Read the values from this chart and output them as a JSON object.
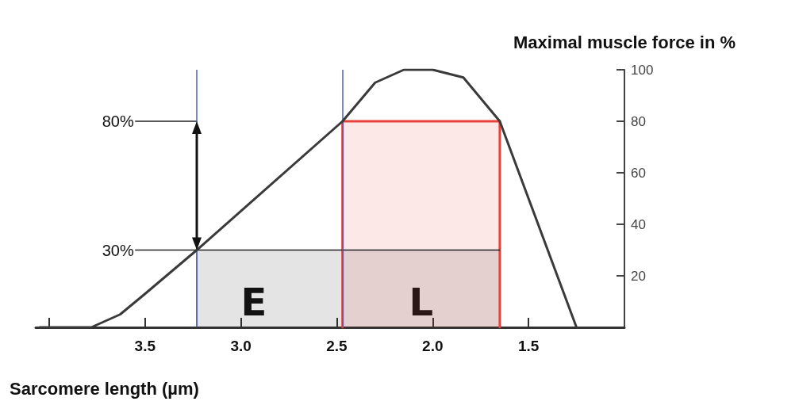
{
  "chart_data": {
    "type": "line",
    "xlabel": "Sarcomere length (µm)",
    "ylabel": "Maximal muscle force in %",
    "xlim": [
      4.07,
      1.0
    ],
    "ylim": [
      0,
      100
    ],
    "xticks": [
      {
        "value": 4.0,
        "label": null
      },
      3.5,
      {
        "value": 3.0,
        "label": "3.0"
      },
      2.5,
      {
        "value": 2.0,
        "label": "2.0"
      },
      1.5
    ],
    "yticks": [
      20,
      40,
      60,
      80,
      100
    ],
    "grid": false,
    "marker": "none",
    "line_style": "solid",
    "series": [
      {
        "type": "line",
        "color": "#3a3a3a",
        "x": [
          4.05,
          3.78,
          3.63,
          3.5,
          3.23,
          2.47,
          2.3,
          2.15,
          2.0,
          1.84,
          1.65,
          1.25
        ],
        "values": [
          0,
          0,
          5,
          13,
          30,
          80,
          95,
          100,
          100,
          97,
          80,
          0
        ]
      },
      {
        "type": "area",
        "color": "#222222",
        "x": [
          3.23,
          3.23,
          1.65
        ],
        "values": [
          0,
          30,
          30
        ]
      },
      {
        "type": "area",
        "color": "#e8413c",
        "x": [
          2.47,
          2.47,
          1.65,
          1.65
        ],
        "values": [
          0,
          80,
          80,
          0
        ]
      },
      {
        "type": "line",
        "color": "#222222",
        "x": [
          3.55,
          1.65
        ],
        "values": [
          30,
          30
        ]
      },
      {
        "type": "line",
        "color": "#222222",
        "x": [
          3.55,
          3.23
        ],
        "values": [
          80,
          80
        ]
      }
    ],
    "ref_lines": [
      {
        "axis": "x",
        "value": 3.23,
        "label": null,
        "color": "#4a63b5"
      },
      {
        "axis": "x",
        "value": 2.47,
        "label": null,
        "color": "#4a63b5"
      }
    ],
    "annotations": [
      {
        "text": "80%",
        "x": 3.55,
        "y": 80
      },
      {
        "text": "30%",
        "x": 3.55,
        "y": 30
      },
      "E",
      "L"
    ]
  }
}
